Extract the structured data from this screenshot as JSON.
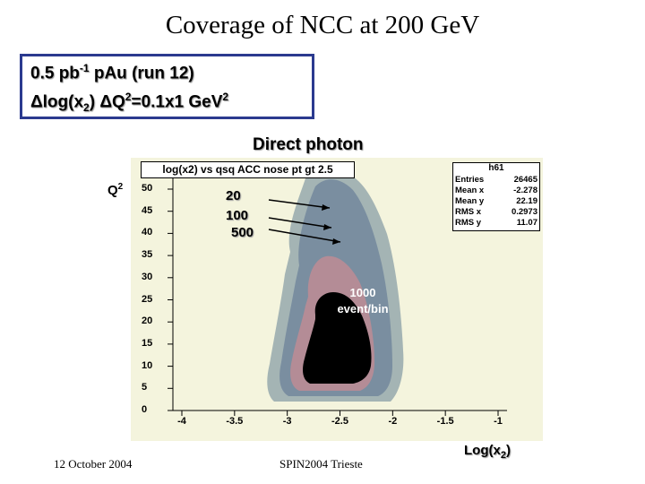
{
  "slide": {
    "title": "Coverage of NCC at 200 GeV",
    "info": {
      "line1_prefix": "0.5 pb",
      "line1_sup": "-1",
      "line1_suffix": " pAu (run 12)",
      "line2_delta1": "Δ",
      "line2_log": "log(x",
      "line2_sub": "2",
      "line2_close": ") ",
      "line2_delta2": "Δ",
      "line2_q": "Q",
      "line2_qsup": "2",
      "line2_eq": "=0.1x1 GeV",
      "line2_gevsup": "2"
    },
    "subtitle": "Direct photon",
    "y_axis_label": "Q",
    "y_axis_label_sup": "2",
    "x_axis_label": "Log(x",
    "x_axis_label_sub": "2",
    "x_axis_label_close": ")",
    "footer_date": "12 October 2004",
    "footer_conf": "SPIN2004 Trieste",
    "annotations": {
      "a20": "20",
      "a100": "100",
      "a500": "500",
      "a1000_line1": "1000",
      "a1000_line2": "event/bin"
    }
  },
  "chart_data": {
    "type": "heatmap",
    "title": "log(x2) vs qsq ACC nose pt gt 2.5",
    "stats_title": "h61",
    "stats": [
      {
        "key": "Entries",
        "value": "26465"
      },
      {
        "key": "Mean x",
        "value": "-2.278"
      },
      {
        "key": "Mean y",
        "value": "22.19"
      },
      {
        "key": "RMS x",
        "value": "0.2973"
      },
      {
        "key": "RMS y",
        "value": "11.07"
      }
    ],
    "x_ticks": [
      "-4",
      "-3.5",
      "-3",
      "-2.5",
      "-2",
      "-1.5",
      "-1"
    ],
    "y_ticks": [
      "50",
      "45",
      "40",
      "35",
      "30",
      "25",
      "20",
      "15",
      "10",
      "5",
      "0"
    ],
    "xlim": [
      -4,
      -1
    ],
    "ylim": [
      0,
      50
    ],
    "contour_levels": [
      20,
      100,
      500,
      1000
    ],
    "colors": {
      "panel_bg": "#f4f4dd",
      "level20": "#a4b4b4",
      "level100": "#7a8ea0",
      "level500": "#b48c96",
      "level1000": "#000000"
    }
  }
}
